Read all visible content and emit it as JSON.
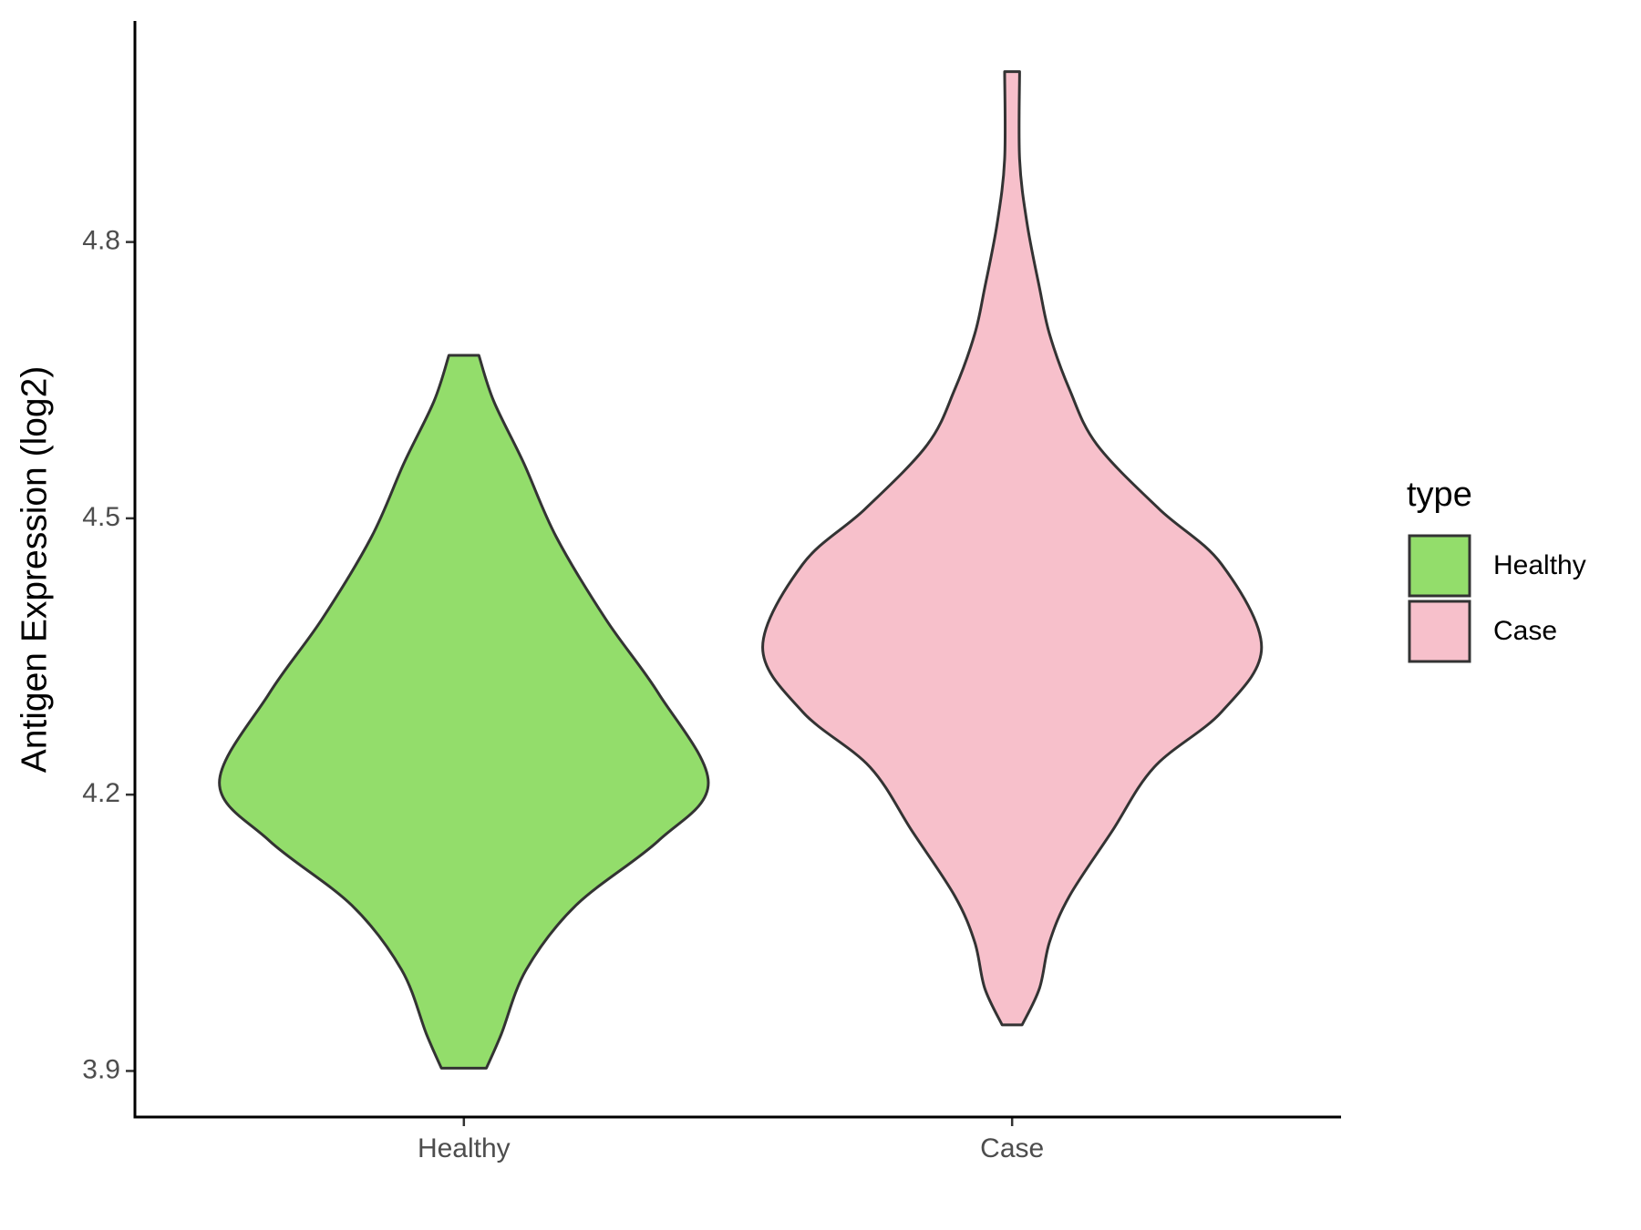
{
  "chart_data": {
    "type": "violin",
    "y_label": "Antigen Expression (log2)",
    "categories": [
      "Healthy",
      "Case"
    ],
    "legend_title": "type",
    "ylim": [
      3.85,
      5.04
    ],
    "yticks": [
      3.9,
      4.2,
      4.5,
      4.8
    ],
    "series": [
      {
        "name": "Healthy",
        "color": "#93dd6b",
        "y": [
          4.677,
          4.627,
          4.56,
          4.48,
          4.39,
          4.31,
          4.213,
          4.15,
          4.08,
          4.01,
          3.94,
          3.903
        ],
        "density": [
          0.06,
          0.12,
          0.24,
          0.37,
          0.57,
          0.78,
          0.98,
          0.78,
          0.45,
          0.25,
          0.15,
          0.09
        ]
      },
      {
        "name": "Case",
        "color": "#f7c0cb",
        "y": [
          4.985,
          4.89,
          4.82,
          4.75,
          4.7,
          4.64,
          4.58,
          4.51,
          4.45,
          4.36,
          4.29,
          4.23,
          4.16,
          4.09,
          4.04,
          3.99,
          3.95
        ],
        "density": [
          0.03,
          0.03,
          0.06,
          0.11,
          0.15,
          0.23,
          0.34,
          0.59,
          0.84,
          1.0,
          0.84,
          0.57,
          0.4,
          0.23,
          0.15,
          0.11,
          0.04
        ]
      }
    ]
  }
}
